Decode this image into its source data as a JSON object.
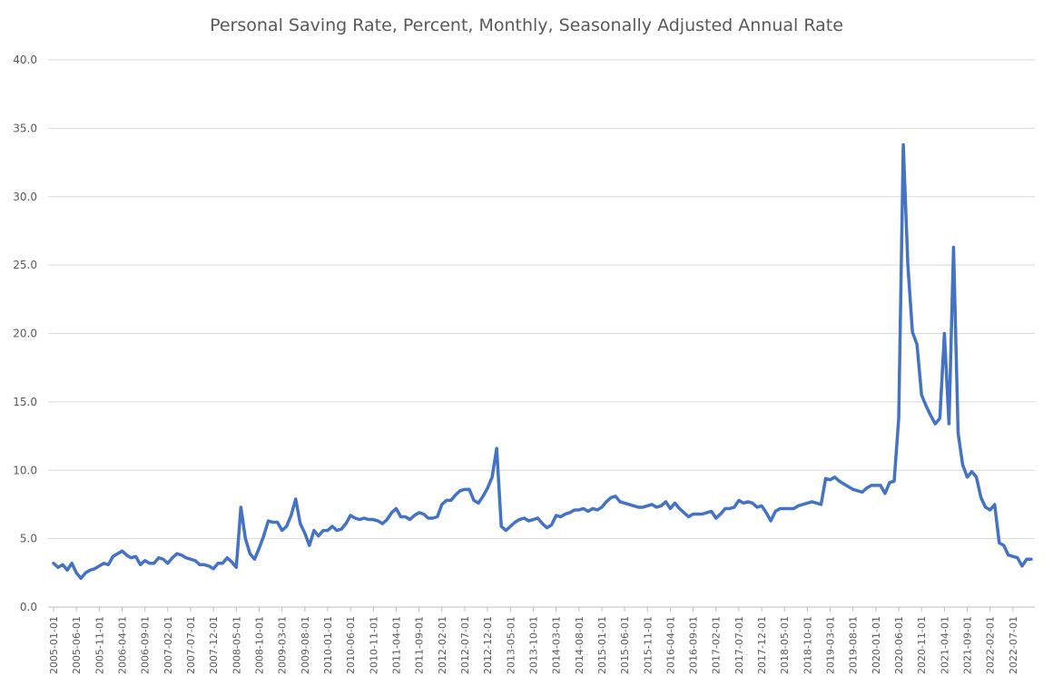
{
  "chart_data": {
    "type": "line",
    "title": "Personal Saving Rate, Percent, Monthly, Seasonally Adjusted Annual Rate",
    "xlabel": "",
    "ylabel": "",
    "ylim": [
      0,
      40
    ],
    "yticks": [
      "0.0",
      "5.0",
      "10.0",
      "15.0",
      "20.0",
      "25.0",
      "30.0",
      "35.0",
      "40.0"
    ],
    "xtick_labels": [
      "2005-01-01",
      "2005-06-01",
      "2005-11-01",
      "2006-04-01",
      "2006-09-01",
      "2007-02-01",
      "2007-07-01",
      "2007-12-01",
      "2008-05-01",
      "2008-10-01",
      "2009-03-01",
      "2009-08-01",
      "2010-01-01",
      "2010-06-01",
      "2010-11-01",
      "2011-04-01",
      "2011-09-01",
      "2012-02-01",
      "2012-07-01",
      "2012-12-01",
      "2013-05-01",
      "2013-10-01",
      "2014-03-01",
      "2014-08-01",
      "2015-01-01",
      "2015-06-01",
      "2015-11-01",
      "2016-04-01",
      "2016-09-01",
      "2017-02-01",
      "2017-07-01",
      "2017-12-01",
      "2018-05-01",
      "2018-10-01",
      "2019-03-01",
      "2019-08-01",
      "2020-01-01",
      "2020-06-01",
      "2020-11-01",
      "2021-04-01",
      "2021-09-01",
      "2022-02-01",
      "2022-07-01"
    ],
    "grid": true,
    "line_color": "#4472c4",
    "x_start": "2005-01",
    "x_end": "2022-08",
    "series": [
      {
        "values": [
          3.2,
          2.9,
          3.1,
          2.7,
          3.2,
          2.5,
          2.1,
          2.5,
          2.7,
          2.8,
          3.0,
          3.2,
          3.1,
          3.7,
          3.9,
          4.1,
          3.8,
          3.6,
          3.7,
          3.1,
          3.4,
          3.2,
          3.2,
          3.6,
          3.5,
          3.2,
          3.6,
          3.9,
          3.8,
          3.6,
          3.5,
          3.4,
          3.1,
          3.1,
          3.0,
          2.8,
          3.2,
          3.2,
          3.6,
          3.3,
          2.9,
          7.3,
          5.0,
          3.9,
          3.5,
          4.3,
          5.2,
          6.3,
          6.2,
          6.2,
          5.6,
          5.9,
          6.7,
          7.9,
          6.1,
          5.4,
          4.5,
          5.6,
          5.2,
          5.6,
          5.6,
          5.9,
          5.6,
          5.7,
          6.1,
          6.7,
          6.5,
          6.4,
          6.5,
          6.4,
          6.4,
          6.3,
          6.1,
          6.4,
          6.9,
          7.2,
          6.6,
          6.6,
          6.4,
          6.7,
          6.9,
          6.8,
          6.5,
          6.5,
          6.6,
          7.5,
          7.8,
          7.8,
          8.2,
          8.5,
          8.6,
          8.6,
          7.8,
          7.6,
          8.1,
          8.7,
          9.5,
          11.6,
          5.9,
          5.6,
          5.9,
          6.2,
          6.4,
          6.5,
          6.3,
          6.4,
          6.5,
          6.1,
          5.8,
          6.0,
          6.7,
          6.6,
          6.8,
          6.9,
          7.1,
          7.1,
          7.2,
          7.0,
          7.2,
          7.1,
          7.3,
          7.7,
          8.0,
          8.1,
          7.7,
          7.6,
          7.5,
          7.4,
          7.3,
          7.3,
          7.4,
          7.5,
          7.3,
          7.4,
          7.7,
          7.2,
          7.6,
          7.2,
          6.9,
          6.6,
          6.8,
          6.8,
          6.8,
          6.9,
          7.0,
          6.5,
          6.8,
          7.2,
          7.2,
          7.3,
          7.8,
          7.6,
          7.7,
          7.6,
          7.3,
          7.4,
          6.9,
          6.3,
          7.0,
          7.2,
          7.2,
          7.2,
          7.2,
          7.4,
          7.5,
          7.6,
          7.7,
          7.6,
          7.5,
          9.4,
          9.3,
          9.5,
          9.2,
          9.0,
          8.8,
          8.6,
          8.5,
          8.4,
          8.7,
          8.9,
          8.9,
          8.9,
          8.3,
          9.1,
          9.2,
          13.8,
          33.8,
          25.0,
          20.1,
          19.2,
          15.5,
          14.7,
          14.0,
          13.4,
          13.8,
          20.0,
          13.4,
          26.3,
          12.7,
          10.4,
          9.5,
          9.9,
          9.5,
          8.0,
          7.3,
          7.1,
          7.5,
          4.7,
          4.5,
          3.8,
          3.7,
          3.6,
          3.0,
          3.5,
          3.5
        ]
      }
    ]
  }
}
